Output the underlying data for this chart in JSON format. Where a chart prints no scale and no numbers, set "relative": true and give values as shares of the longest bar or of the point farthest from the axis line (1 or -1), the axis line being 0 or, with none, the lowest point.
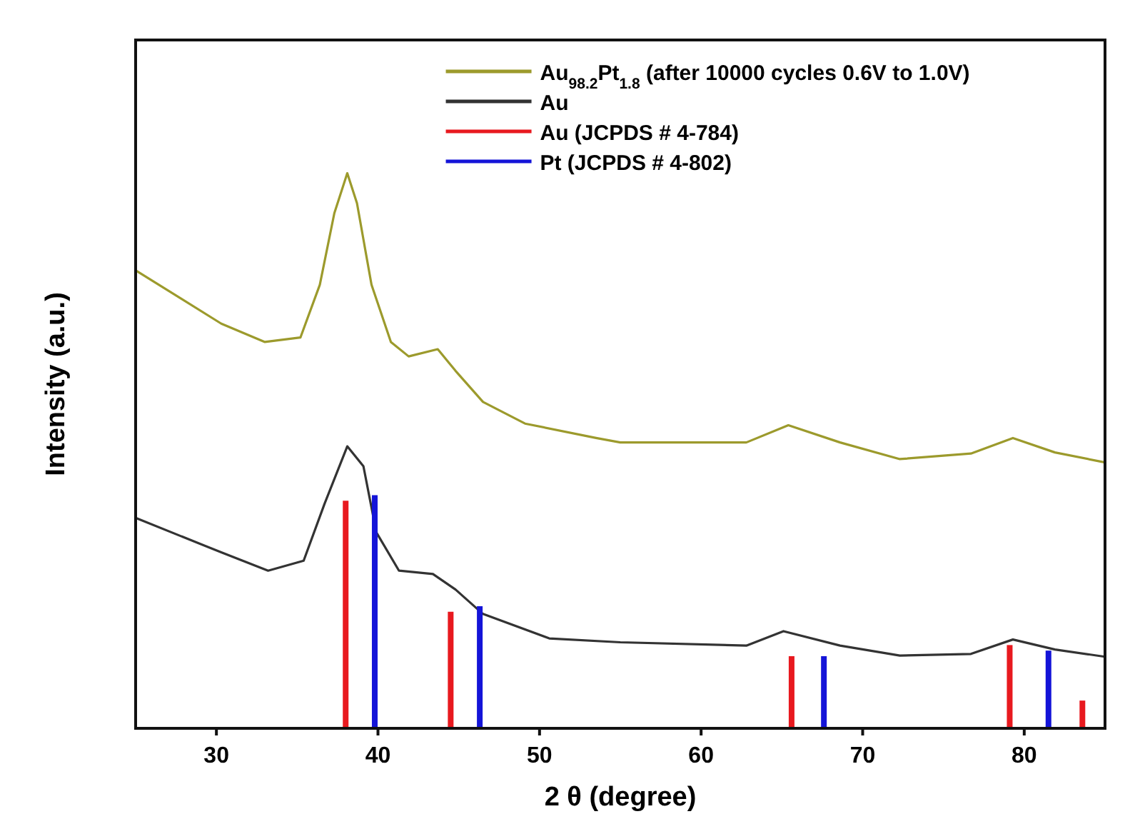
{
  "chart_data": {
    "type": "line",
    "relative": true,
    "xlabel": "2 θ (degree)",
    "ylabel": "Intensity (a.u.)",
    "xlim": [
      25,
      85
    ],
    "xticks": [
      30,
      40,
      50,
      60,
      70,
      80
    ],
    "legend": "top right",
    "grid": false,
    "series": [
      {
        "name": "Au$_{98.2}$Pt$_{1.8}$ (after 10000 cycles 0.6V to 1.0V)",
        "color": "#9c9a2c",
        "x": [
          25.0,
          30.3,
          33.0,
          35.2,
          36.4,
          37.3,
          38.1,
          38.7,
          39.6,
          40.8,
          41.9,
          43.7,
          44.8,
          46.5,
          49.1,
          53.5,
          55.0,
          62.8,
          65.4,
          68.6,
          72.3,
          76.7,
          79.3,
          81.9,
          85.0
        ],
        "values": [
          0.825,
          0.729,
          0.696,
          0.704,
          0.799,
          0.928,
          1.0,
          0.946,
          0.799,
          0.696,
          0.67,
          0.683,
          0.644,
          0.588,
          0.549,
          0.523,
          0.515,
          0.515,
          0.546,
          0.515,
          0.485,
          0.495,
          0.523,
          0.497,
          0.479
        ]
      },
      {
        "name": "Au",
        "color": "#333333",
        "x": [
          25.0,
          30.3,
          33.2,
          35.4,
          36.7,
          38.1,
          39.1,
          39.9,
          41.3,
          43.4,
          44.8,
          46.5,
          50.6,
          55.0,
          62.8,
          65.1,
          68.6,
          72.3,
          76.7,
          79.3,
          81.9,
          85.0
        ],
        "values": [
          0.379,
          0.317,
          0.284,
          0.302,
          0.405,
          0.508,
          0.472,
          0.353,
          0.284,
          0.278,
          0.25,
          0.206,
          0.162,
          0.155,
          0.149,
          0.175,
          0.149,
          0.131,
          0.134,
          0.16,
          0.142,
          0.129
        ]
      },
      {
        "name": "Au (JCPDS # 4-784)",
        "type": "bar",
        "color": "#e8191f",
        "x": [
          38.0,
          44.5,
          65.6,
          79.1,
          83.6
        ],
        "values": [
          0.41,
          0.21,
          0.13,
          0.15,
          0.05
        ]
      },
      {
        "name": "Pt (JCPDS # 4-802)",
        "type": "bar",
        "color": "#1414d8",
        "x": [
          39.8,
          46.3,
          67.6,
          81.5
        ],
        "values": [
          0.42,
          0.22,
          0.13,
          0.14
        ]
      }
    ]
  }
}
